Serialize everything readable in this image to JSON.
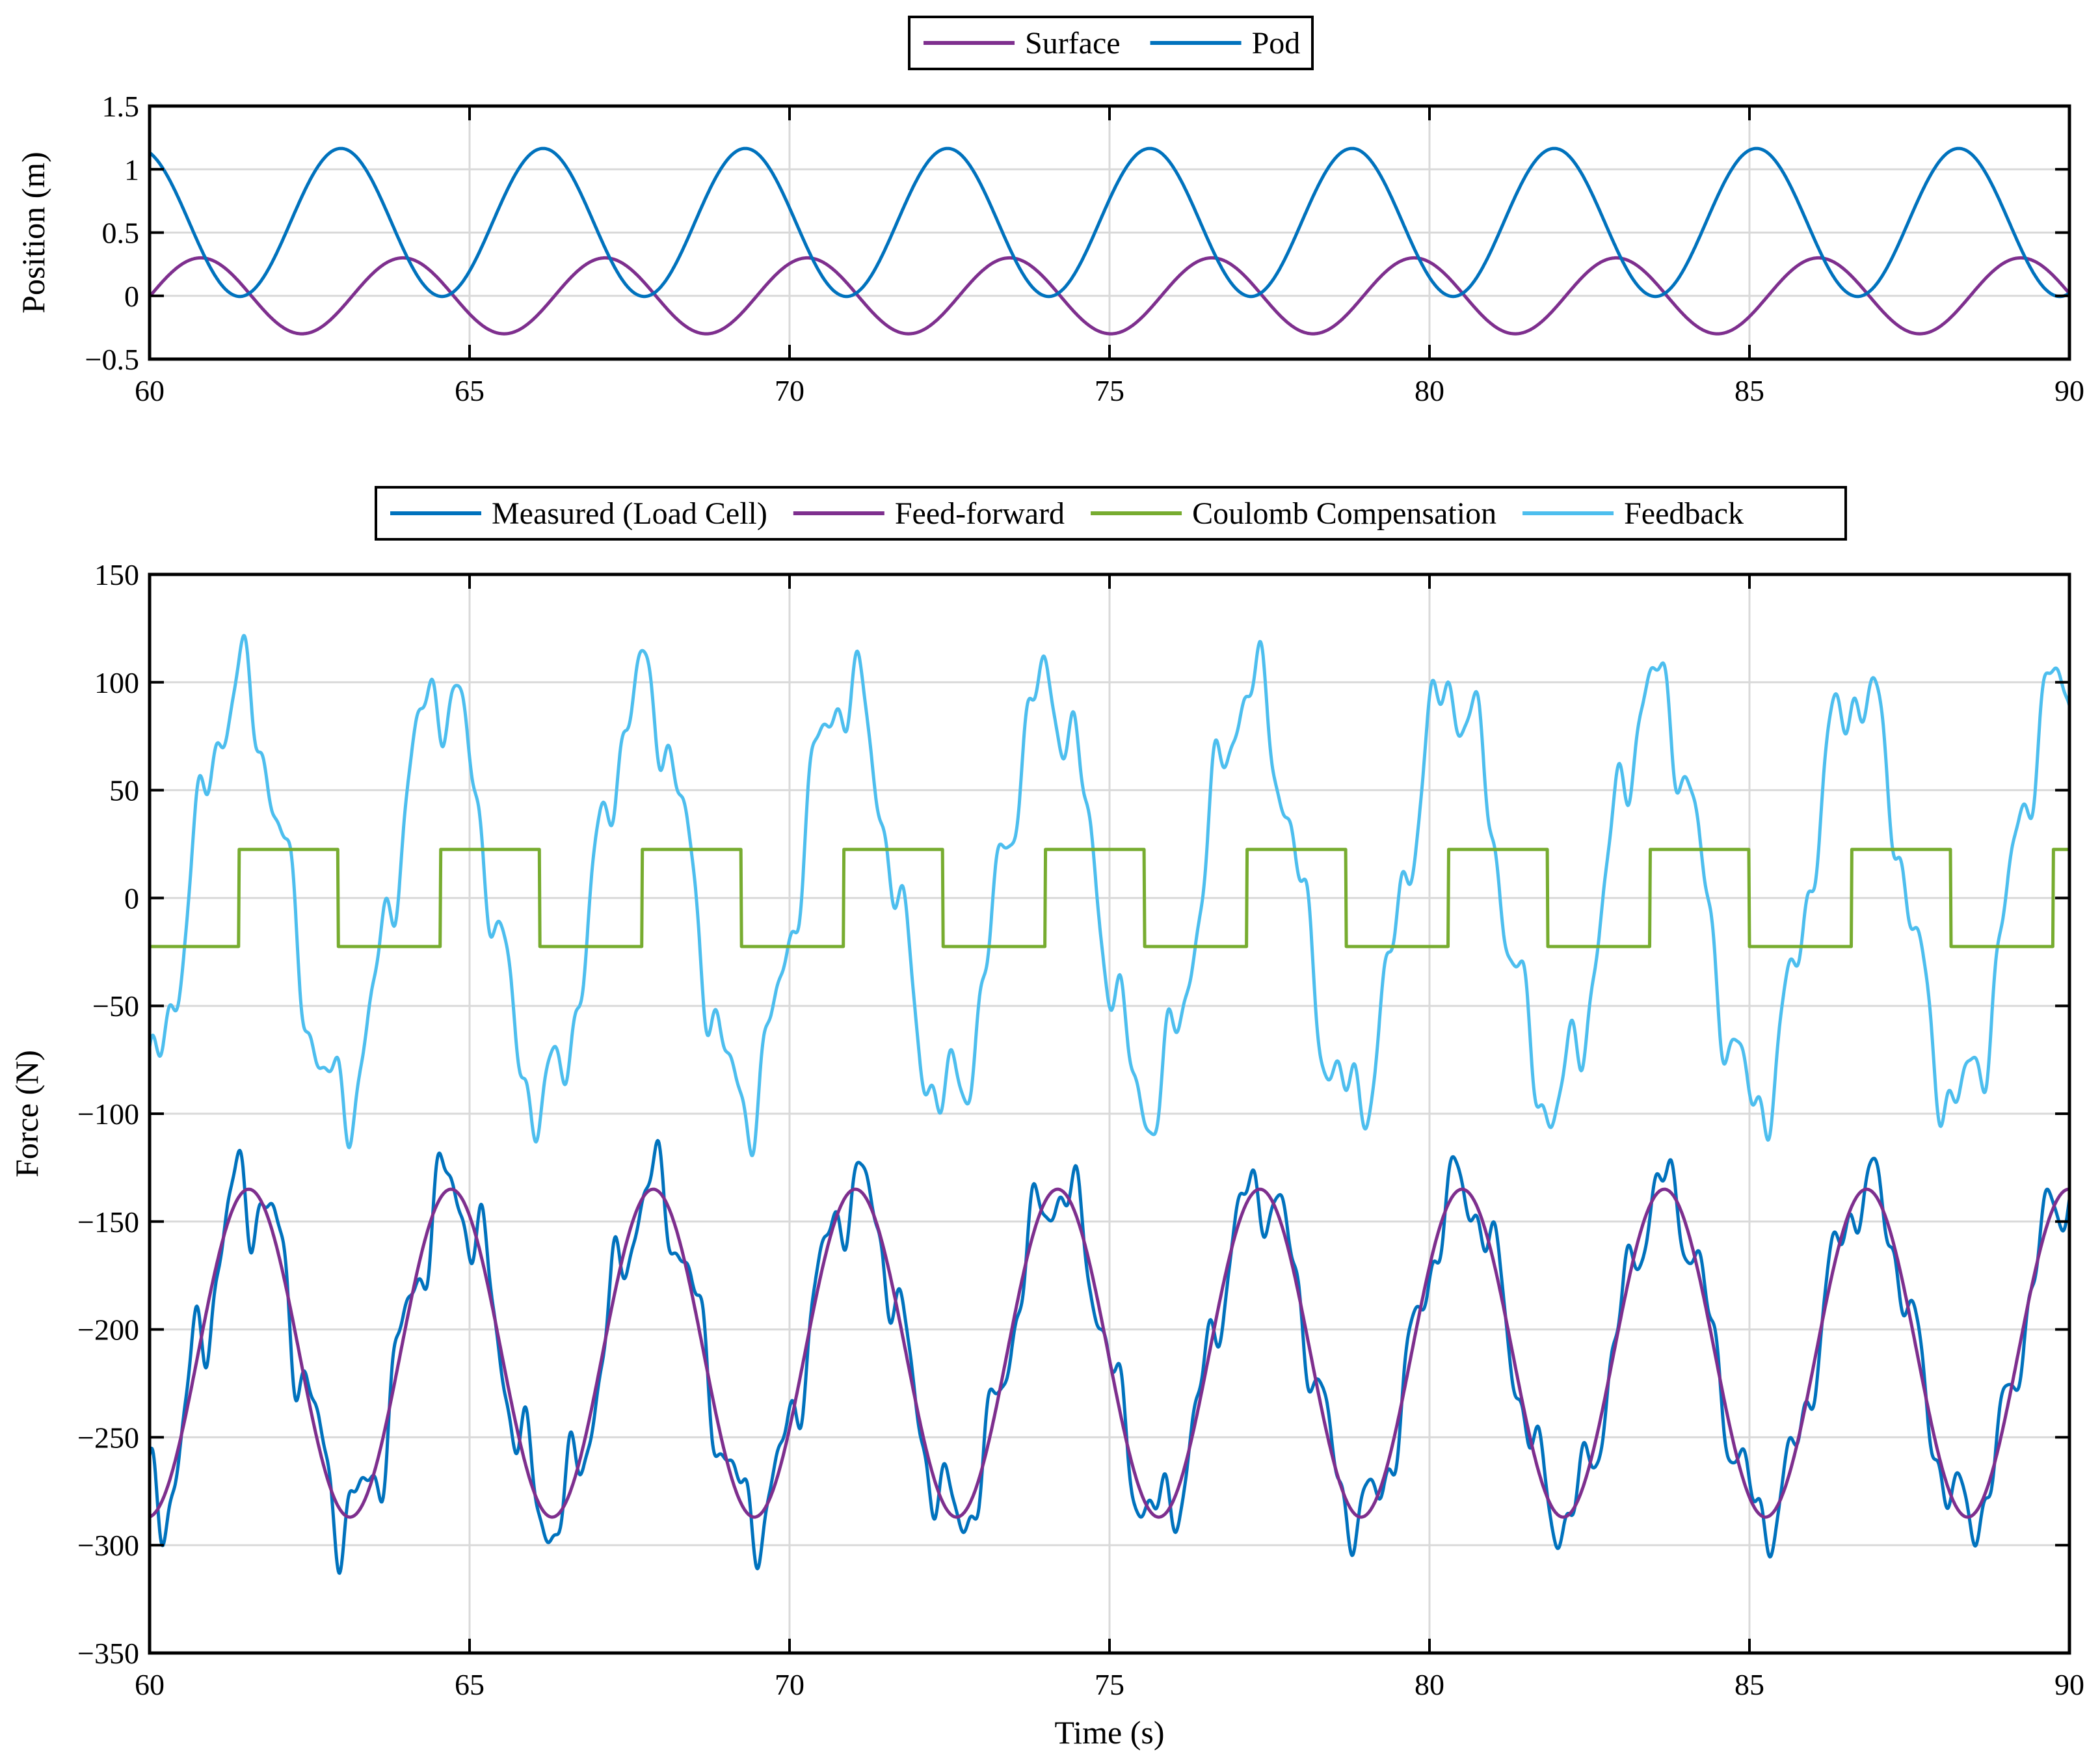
{
  "colors": {
    "surface": "#7e2f8e",
    "pod": "#0072bd",
    "measured": "#0072bd",
    "feedforward": "#7e2f8e",
    "coulomb": "#77ac30",
    "feedback": "#4dbeee"
  },
  "chart_data": [
    {
      "type": "line",
      "title": "",
      "xlabel": "",
      "ylabel": "Position (m)",
      "xlim": [
        60,
        90
      ],
      "ylim": [
        -0.5,
        1.5
      ],
      "xticks": [
        60,
        65,
        70,
        75,
        80,
        85,
        90
      ],
      "xtick_labels": [
        "60",
        "65",
        "70",
        "75",
        "80",
        "85",
        "90"
      ],
      "yticks": [
        -0.5,
        0,
        0.5,
        1,
        1.5
      ],
      "ytick_labels": [
        "−0.5",
        "0",
        "0.5",
        "1",
        "1.5"
      ],
      "grid": true,
      "legend": {
        "position": "top-center, outside",
        "orientation": "horizontal",
        "entries": [
          "Surface",
          "Pod"
        ]
      },
      "series": [
        {
          "name": "Surface",
          "color": "#7e2f8e",
          "model": "sinusoid",
          "period_s": 3.16,
          "amplitude": 0.3,
          "offset": 0.0,
          "peak_times": [
            60.8,
            63.96,
            67.12,
            70.28,
            73.44,
            76.6,
            79.76,
            82.92,
            86.08,
            89.24
          ]
        },
        {
          "name": "Pod",
          "color": "#0072bd",
          "model": "sinusoid",
          "period_s": 3.16,
          "amplitude": 0.585,
          "offset": 0.58,
          "peak_times": [
            59.83,
            62.99,
            66.15,
            69.31,
            72.47,
            75.63,
            78.79,
            81.95,
            85.11,
            88.27
          ]
        }
      ]
    },
    {
      "type": "line",
      "title": "",
      "xlabel": "Time (s)",
      "ylabel": "Force (N)",
      "xlim": [
        60,
        90
      ],
      "ylim": [
        -350,
        150
      ],
      "xticks": [
        60,
        65,
        70,
        75,
        80,
        85,
        90
      ],
      "xtick_labels": [
        "60",
        "65",
        "70",
        "75",
        "80",
        "85",
        "90"
      ],
      "yticks": [
        -350,
        -300,
        -250,
        -200,
        -150,
        -100,
        -50,
        0,
        50,
        100,
        150
      ],
      "ytick_labels": [
        "−350",
        "−300",
        "−250",
        "−200",
        "−150",
        "−100",
        "−50",
        "0",
        "50",
        "100",
        "150"
      ],
      "grid": true,
      "legend": {
        "position": "top-center, outside",
        "orientation": "horizontal",
        "entries": [
          "Measured (Load Cell)",
          "Feed-forward",
          "Coulomb Compensation",
          "Feedback"
        ]
      },
      "series": [
        {
          "name": "Measured (Load Cell)",
          "color": "#0072bd",
          "model": "feed-forward plus oscillation",
          "range": [
            -335,
            -110
          ],
          "peak_times": [
            61.55,
            64.71,
            67.87,
            71.03,
            74.19,
            77.35,
            80.51,
            83.67,
            86.83
          ]
        },
        {
          "name": "Feed-forward",
          "color": "#7e2f8e",
          "model": "sinusoid",
          "period_s": 3.16,
          "amplitude": 76,
          "offset": -211,
          "peak_times": [
            61.55,
            64.71,
            67.87,
            71.03,
            74.19,
            77.35,
            80.51,
            83.67,
            86.83,
            89.99
          ]
        },
        {
          "name": "Coulomb Compensation",
          "color": "#77ac30",
          "model": "square wave",
          "high": 22.5,
          "low": -22.5,
          "switch_times": [
            61.4,
            62.95,
            64.55,
            66.1,
            67.7,
            69.25,
            70.85,
            72.4,
            74.0,
            75.55,
            77.15,
            78.7,
            80.3,
            81.85,
            83.45,
            85.0,
            86.6,
            88.15,
            89.75
          ]
        },
        {
          "name": "Feedback",
          "color": "#4dbeee",
          "model": "noisy sinusoid",
          "range": [
            -120,
            122
          ],
          "peak_times": [
            61.4,
            64.5,
            67.7,
            70.8,
            73.9,
            77.1,
            80.2,
            83.3,
            86.5,
            89.6
          ]
        }
      ]
    }
  ]
}
